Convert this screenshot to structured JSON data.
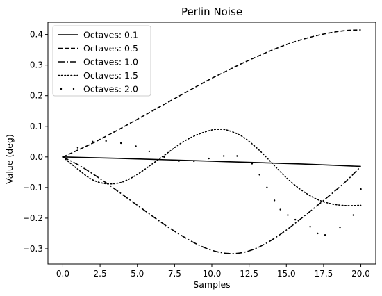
{
  "chart_data": {
    "type": "line",
    "title": "Perlin Noise",
    "xlabel": "Samples",
    "ylabel": "Value (deg)",
    "xlim": [
      -1.0,
      21.0
    ],
    "ylim": [
      -0.35,
      0.44
    ],
    "xticks": [
      0.0,
      2.5,
      5.0,
      7.5,
      10.0,
      12.5,
      15.0,
      17.5,
      20.0
    ],
    "xtick_labels": [
      "0.0",
      "2.5",
      "5.0",
      "7.5",
      "10.0",
      "12.5",
      "15.0",
      "17.5",
      "20.0"
    ],
    "yticks": [
      -0.3,
      -0.2,
      -0.1,
      0.0,
      0.1,
      0.2,
      0.3,
      0.4
    ],
    "ytick_labels": [
      "−0.3",
      "−0.2",
      "−0.1",
      "0.0",
      "0.1",
      "0.2",
      "0.3",
      "0.4"
    ],
    "legend_position": "top-left",
    "grid": false,
    "series": [
      {
        "name": "Octaves: 0.1",
        "style": "solid",
        "x": [
          0,
          2,
          4,
          6,
          8,
          10,
          12,
          14,
          16,
          18,
          20
        ],
        "y": [
          0.0,
          -0.0025,
          -0.005,
          -0.008,
          -0.011,
          -0.014,
          -0.017,
          -0.02,
          -0.023,
          -0.027,
          -0.031
        ]
      },
      {
        "name": "Octaves: 0.5",
        "style": "dashed",
        "x": [
          0,
          1,
          2,
          3,
          4,
          5,
          6,
          7,
          8,
          9,
          10,
          11,
          12,
          13,
          14,
          15,
          16,
          17,
          18,
          19,
          20
        ],
        "y": [
          0.0,
          0.022,
          0.045,
          0.07,
          0.096,
          0.123,
          0.15,
          0.177,
          0.204,
          0.231,
          0.257,
          0.281,
          0.305,
          0.327,
          0.348,
          0.367,
          0.383,
          0.396,
          0.406,
          0.413,
          0.415
        ]
      },
      {
        "name": "Octaves: 1.0",
        "style": "dashdot",
        "x": [
          0,
          1,
          2,
          3,
          4,
          5,
          6,
          7,
          8,
          9,
          10,
          11,
          12,
          13,
          14,
          15,
          16,
          17,
          18,
          19,
          20
        ],
        "y": [
          0.0,
          -0.025,
          -0.055,
          -0.088,
          -0.123,
          -0.158,
          -0.193,
          -0.227,
          -0.258,
          -0.285,
          -0.305,
          -0.315,
          -0.313,
          -0.298,
          -0.272,
          -0.239,
          -0.201,
          -0.162,
          -0.122,
          -0.08,
          -0.031
        ]
      },
      {
        "name": "Octaves: 1.5",
        "style": "dotted",
        "x": [
          0,
          1,
          2,
          3,
          4,
          5,
          6,
          7,
          8,
          9,
          10,
          10.5,
          11,
          12,
          13,
          14,
          15,
          16,
          17,
          18,
          19,
          20
        ],
        "y": [
          0.0,
          -0.04,
          -0.075,
          -0.088,
          -0.082,
          -0.057,
          -0.023,
          0.012,
          0.047,
          0.072,
          0.088,
          0.09,
          0.088,
          0.068,
          0.03,
          -0.018,
          -0.068,
          -0.108,
          -0.137,
          -0.153,
          -0.159,
          -0.158
        ]
      },
      {
        "name": "Octaves: 2.0",
        "style": "points",
        "x": [
          0,
          1.0,
          2.0,
          2.9,
          3.9,
          4.9,
          5.8,
          6.8,
          7.8,
          8.8,
          9.8,
          10.8,
          11.7,
          12.7,
          13.2,
          13.7,
          14.2,
          14.6,
          15.1,
          15.6,
          16.6,
          17.1,
          17.6,
          18.6,
          19.5,
          20.0
        ],
        "y": [
          0.0,
          0.03,
          0.05,
          0.052,
          0.045,
          0.035,
          0.018,
          0.0,
          -0.013,
          -0.014,
          -0.005,
          0.003,
          0.003,
          -0.022,
          -0.058,
          -0.1,
          -0.142,
          -0.172,
          -0.19,
          -0.205,
          -0.228,
          -0.25,
          -0.255,
          -0.23,
          -0.19,
          -0.105
        ]
      }
    ]
  }
}
